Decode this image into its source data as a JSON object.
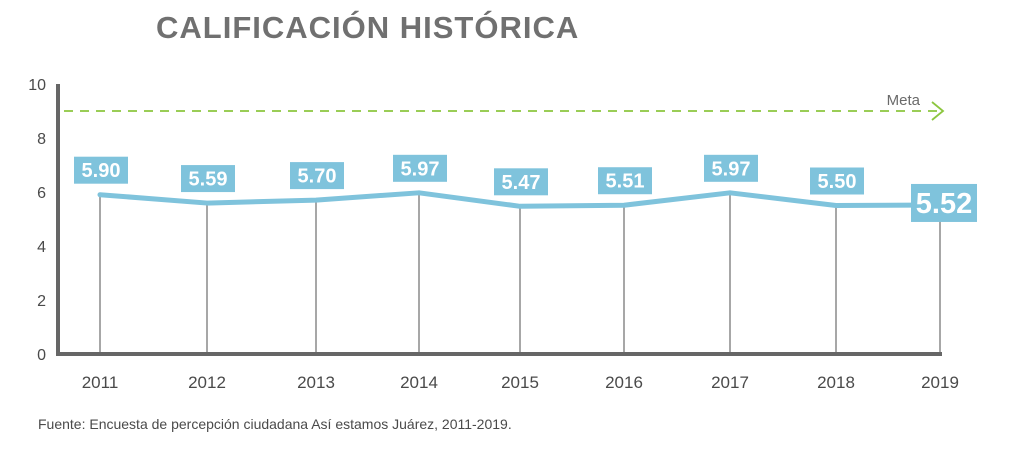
{
  "title": "CALIFICACIÓN HISTÓRICA",
  "source": "Fuente: Encuesta de percepción ciudadana Así estamos Juárez, 2011-2019.",
  "colors": {
    "line": "#7fc3dc",
    "label_bg": "#7fc3dc",
    "target": "#8cc63f",
    "axis": "#666666",
    "drop_line": "#8a8a8a",
    "title": "#707070"
  },
  "chart_data": {
    "type": "line",
    "title": "CALIFICACIÓN HISTÓRICA",
    "xlabel": "",
    "ylabel": "",
    "ylim": [
      0,
      10
    ],
    "y_ticks": [
      "0",
      "2",
      "4",
      "6",
      "8",
      "10"
    ],
    "categories": [
      "2011",
      "2012",
      "2013",
      "2014",
      "2015",
      "2016",
      "2017",
      "2018",
      "2019"
    ],
    "values": [
      5.9,
      5.59,
      5.7,
      5.97,
      5.47,
      5.51,
      5.97,
      5.5,
      5.52
    ],
    "data_labels": [
      "5.90",
      "5.59",
      "5.70",
      "5.97",
      "5.47",
      "5.51",
      "5.97",
      "5.50",
      "5.52"
    ],
    "target": {
      "label": "Meta",
      "value": 9
    },
    "grid": false,
    "legend": "none"
  }
}
